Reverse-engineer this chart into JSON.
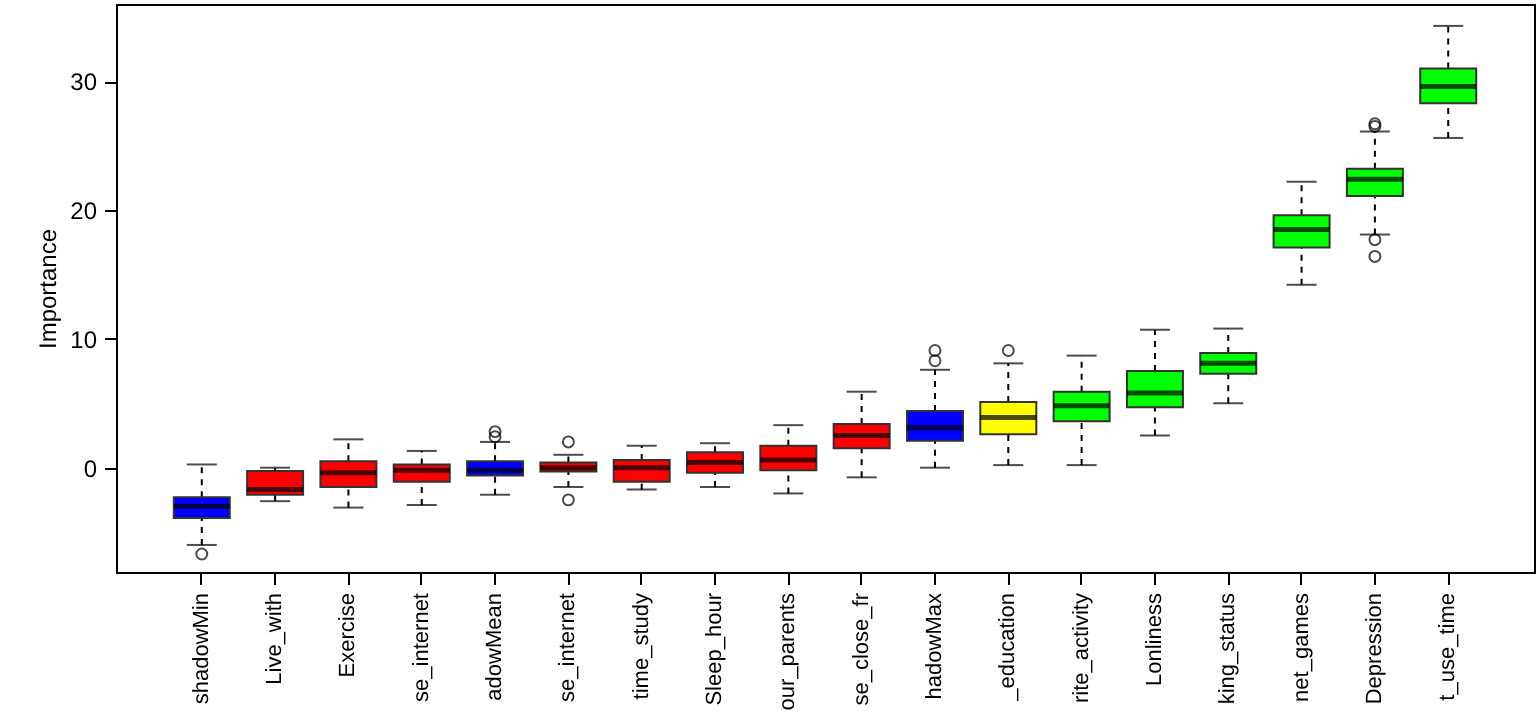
{
  "chart_data": {
    "type": "box",
    "ylabel": "Importance",
    "ylim": [
      -8.1,
      36
    ],
    "yticks": [
      0,
      10,
      20,
      30
    ],
    "categories": [
      "shadowMin",
      "Live_with",
      "Exercise",
      "se_internet",
      "adowMean",
      "se_internet",
      "time_study",
      "Sleep_hour",
      "our_parents",
      "se_close_fr",
      "hadowMax",
      "_education",
      "rite_activity",
      "Lonliness",
      "king_status",
      "net_games",
      "Depression",
      "t_use_time"
    ],
    "colors": [
      "#0000ff",
      "#ff0000",
      "#ff0000",
      "#ff0000",
      "#0000ff",
      "#ff0000",
      "#ff0000",
      "#ff0000",
      "#ff0000",
      "#ff0000",
      "#0000ff",
      "#ffff00",
      "#00ff00",
      "#00ff00",
      "#00ff00",
      "#00ff00",
      "#00ff00",
      "#00ff00"
    ],
    "boxes": [
      {
        "low": -6.0,
        "q1": -3.9,
        "median": -3.0,
        "q3": -2.3,
        "high": 0.25,
        "outliers": [
          -6.7
        ]
      },
      {
        "low": -2.6,
        "q1": -2.1,
        "median": -1.7,
        "q3": -0.25,
        "high": 0
      },
      {
        "low": -3.1,
        "q1": -1.5,
        "median": -0.4,
        "q3": 0.5,
        "high": 2.2
      },
      {
        "low": -2.9,
        "q1": -1.1,
        "median": -0.2,
        "q3": 0.25,
        "high": 1.3
      },
      {
        "low": -2.1,
        "q1": -0.6,
        "median": -0.2,
        "q3": 0.5,
        "high": 2.0,
        "outliers": [
          2.8,
          2.4
        ]
      },
      {
        "low": -1.5,
        "q1": -0.3,
        "median": 0,
        "q3": 0.4,
        "high": 1.0,
        "outliers": [
          2.0,
          -2.5
        ]
      },
      {
        "low": -1.7,
        "q1": -1.1,
        "median": 0,
        "q3": 0.6,
        "high": 1.7
      },
      {
        "low": -1.5,
        "q1": -0.4,
        "median": 0.4,
        "q3": 1.2,
        "high": 1.9
      },
      {
        "low": -2.0,
        "q1": -0.2,
        "median": 0.6,
        "q3": 1.7,
        "high": 3.3
      },
      {
        "low": -0.75,
        "q1": 1.5,
        "median": 2.5,
        "q3": 3.4,
        "high": 5.9
      },
      {
        "low": 0,
        "q1": 2.1,
        "median": 3.1,
        "q3": 4.4,
        "high": 7.6,
        "outliers": [
          9.1,
          8.3
        ]
      },
      {
        "low": 0.2,
        "q1": 2.6,
        "median": 3.9,
        "q3": 5.1,
        "high": 8.1,
        "outliers": [
          9.1
        ]
      },
      {
        "low": 0.2,
        "q1": 3.6,
        "median": 4.8,
        "q3": 5.9,
        "high": 8.7
      },
      {
        "low": 2.5,
        "q1": 4.7,
        "median": 5.8,
        "q3": 7.5,
        "high": 10.7
      },
      {
        "low": 5.0,
        "q1": 7.3,
        "median": 8.1,
        "q3": 8.9,
        "high": 10.8
      },
      {
        "low": 14.2,
        "q1": 17.1,
        "median": 18.5,
        "q3": 19.6,
        "high": 22.2
      },
      {
        "low": 18.1,
        "q1": 21.1,
        "median": 22.4,
        "q3": 23.2,
        "high": 26.1,
        "outliers": [
          26.7,
          26.5,
          17.7,
          16.4
        ]
      },
      {
        "low": 25.6,
        "q1": 28.3,
        "median": 29.6,
        "q3": 31.0,
        "high": 34.3
      }
    ]
  }
}
